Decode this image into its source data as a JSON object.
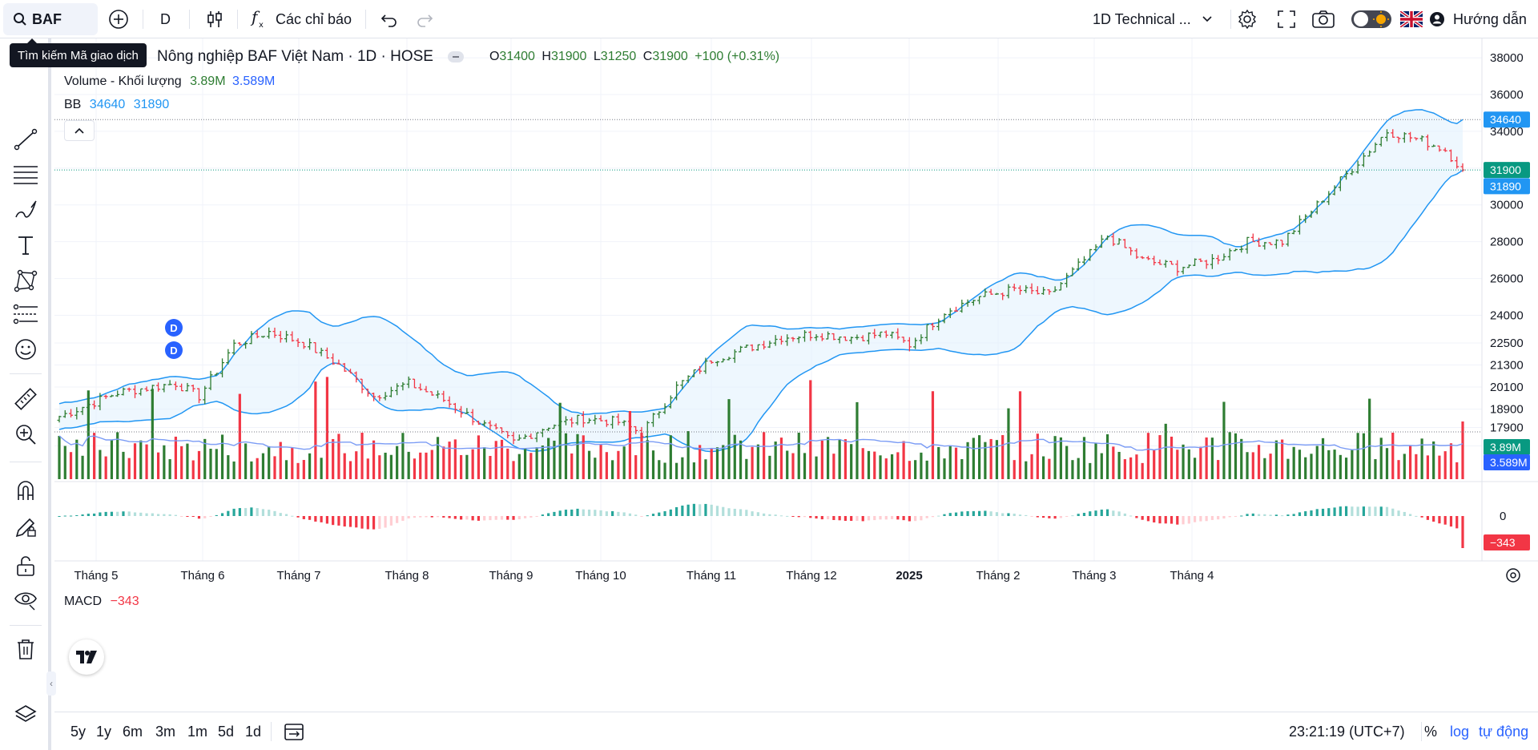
{
  "topbar": {
    "symbol": "BAF",
    "interval": "D",
    "indicators_label": "Các chỉ báo",
    "layout_name": "1D Technical ...",
    "guide_label": "Hướng dẫn"
  },
  "tooltip": {
    "text": "Tìm kiếm Mã giao dịch"
  },
  "legend": {
    "title": "Nông nghiệp BAF Việt Nam · 1D · HOSE",
    "open_label": "O",
    "open": "31400",
    "high_label": "H",
    "high": "31900",
    "low_label": "L",
    "low": "31250",
    "close_label": "C",
    "close": "31900",
    "change": "+100 (+0.31%)",
    "volume_label": "Volume - Khối lượng",
    "volume_value": "3.89M",
    "volume_ma": "3.589M",
    "bb_label": "BB",
    "bb_upper": "34640",
    "bb_lower": "31890",
    "macd_label": "MACD",
    "macd_value": "−343"
  },
  "markers": [
    "D",
    "D"
  ],
  "price_axis": {
    "labels": [
      "38000",
      "36000",
      "34000",
      "32000",
      "30000",
      "28000",
      "26000",
      "24000",
      "22500",
      "21300",
      "20100",
      "18900",
      "17900",
      "16900"
    ],
    "tags": [
      {
        "text": "34640",
        "color": "#2196f3"
      },
      {
        "text": "31900",
        "color": "#089981"
      },
      {
        "text": "31890",
        "color": "#2196f3"
      },
      {
        "text": "3.89M",
        "color": "#089981"
      },
      {
        "text": "3.589M",
        "color": "#2962ff"
      },
      {
        "text": "−343",
        "color": "#f23645"
      }
    ],
    "macd_zero": "0"
  },
  "time_axis": {
    "labels": [
      "Tháng 5",
      "Tháng 6",
      "Tháng 7",
      "Tháng 8",
      "Tháng 9",
      "Tháng 10",
      "Tháng 11",
      "Tháng 12",
      "2025",
      "Tháng 2",
      "Tháng 3",
      "Tháng 4"
    ]
  },
  "bottombar": {
    "ranges": [
      "5y",
      "1y",
      "6m",
      "3m",
      "1m",
      "5d",
      "1d"
    ],
    "time": "23:21:19 (UTC+7)",
    "percent": "%",
    "log": "log",
    "auto": "tự động"
  },
  "colors": {
    "up": "#2e7d32",
    "down": "#f23645",
    "bb_line": "#2196f3",
    "bb_fill": "#e3f2fd",
    "macd_pos_strong": "#26a69a",
    "macd_pos_weak": "#b2dfdb",
    "macd_neg_strong": "#f23645",
    "macd_neg_weak": "#ffcdd2",
    "vol_ma": "#7b9cf5"
  },
  "chart_data": {
    "type": "candlestick",
    "close_path": [
      [
        0,
        18500
      ],
      [
        10,
        19800
      ],
      [
        20,
        20300
      ],
      [
        24,
        19600
      ],
      [
        30,
        22400
      ],
      [
        36,
        23100
      ],
      [
        42,
        22500
      ],
      [
        48,
        21300
      ],
      [
        54,
        19600
      ],
      [
        60,
        20300
      ],
      [
        66,
        19400
      ],
      [
        72,
        18200
      ],
      [
        78,
        17100
      ],
      [
        84,
        18000
      ],
      [
        90,
        18400
      ],
      [
        96,
        18200
      ],
      [
        100,
        17600
      ],
      [
        106,
        20100
      ],
      [
        112,
        21600
      ],
      [
        118,
        22200
      ],
      [
        124,
        22800
      ],
      [
        130,
        23000
      ],
      [
        136,
        22800
      ],
      [
        142,
        23000
      ],
      [
        146,
        22400
      ],
      [
        152,
        24200
      ],
      [
        158,
        25000
      ],
      [
        164,
        25400
      ],
      [
        170,
        25100
      ],
      [
        176,
        27000
      ],
      [
        180,
        28300
      ],
      [
        186,
        27000
      ],
      [
        192,
        26600
      ],
      [
        198,
        27000
      ],
      [
        204,
        28000
      ],
      [
        210,
        28000
      ],
      [
        216,
        30000
      ],
      [
        222,
        32000
      ],
      [
        228,
        34000
      ],
      [
        234,
        33500
      ],
      [
        238,
        33000
      ],
      [
        241,
        31900
      ]
    ],
    "n_bars": 242,
    "ylim": [
      16400,
      38700
    ]
  }
}
